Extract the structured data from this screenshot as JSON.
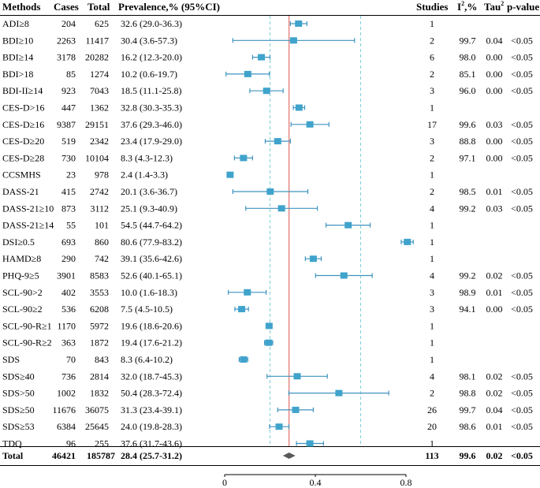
{
  "chart_data": {
    "type": "forest",
    "columns": {
      "method": "Methods",
      "cases": "Cases",
      "total": "Total",
      "prevalence": "Prevalence,% (95%CI)",
      "studies": "Studies",
      "i2": "I",
      "i2_sup": "2",
      "i2_unit": ",%",
      "tau": "Tau",
      "tau_sup": "2",
      "p": "p-value"
    },
    "x_axis": {
      "min": 0,
      "max": 0.8,
      "ticks": [
        0,
        0.4,
        0.8
      ],
      "tick_labels": [
        "0",
        "0.4",
        "0.8"
      ],
      "dashed_gridlines": [
        0.2,
        0.6
      ],
      "reference_line": 0.284
    },
    "rows": [
      {
        "method": "ADI≥8",
        "cases": "204",
        "total": "625",
        "ci_text": "32.6 (29.0-36.3)",
        "est": 0.326,
        "lo": 0.29,
        "hi": 0.363,
        "studies": "1",
        "i2": "",
        "tau2": "",
        "p": ""
      },
      {
        "method": "BDI≥10",
        "cases": "2263",
        "total": "11417",
        "ci_text": "30.4 (3.6-57.3)",
        "est": 0.304,
        "lo": 0.036,
        "hi": 0.573,
        "studies": "2",
        "i2": "99.7",
        "tau2": "0.04",
        "p": "<0.05"
      },
      {
        "method": "BDI≥14",
        "cases": "3178",
        "total": "20282",
        "ci_text": "16.2 (12.3-20.0)",
        "est": 0.162,
        "lo": 0.123,
        "hi": 0.2,
        "studies": "6",
        "i2": "98.0",
        "tau2": "0.00",
        "p": "<0.05"
      },
      {
        "method": "BDI>18",
        "cases": "85",
        "total": "1274",
        "ci_text": "10.2 (0.6-19.7)",
        "est": 0.102,
        "lo": 0.006,
        "hi": 0.197,
        "studies": "2",
        "i2": "85.1",
        "tau2": "0.00",
        "p": "<0.05"
      },
      {
        "method": "BDI-II≥14",
        "cases": "923",
        "total": "7043",
        "ci_text": "18.5 (11.1-25.8)",
        "est": 0.185,
        "lo": 0.111,
        "hi": 0.258,
        "studies": "3",
        "i2": "96.0",
        "tau2": "0.00",
        "p": "<0.05"
      },
      {
        "method": "CES-D>16",
        "cases": "447",
        "total": "1362",
        "ci_text": "32.8 (30.3-35.3)",
        "est": 0.328,
        "lo": 0.303,
        "hi": 0.353,
        "studies": "1",
        "i2": "",
        "tau2": "",
        "p": ""
      },
      {
        "method": "CES-D≥16",
        "cases": "9387",
        "total": "29151",
        "ci_text": "37.6 (29.3-46.0)",
        "est": 0.376,
        "lo": 0.293,
        "hi": 0.46,
        "studies": "17",
        "i2": "99.6",
        "tau2": "0.03",
        "p": "<0.05"
      },
      {
        "method": "CES-D≥20",
        "cases": "519",
        "total": "2342",
        "ci_text": "23.4 (17.9-29.0)",
        "est": 0.234,
        "lo": 0.179,
        "hi": 0.29,
        "studies": "3",
        "i2": "88.8",
        "tau2": "0.00",
        "p": "<0.05"
      },
      {
        "method": "CES-D≥28",
        "cases": "730",
        "total": "10104",
        "ci_text": "8.3 (4.3-12.3)",
        "est": 0.083,
        "lo": 0.043,
        "hi": 0.123,
        "studies": "2",
        "i2": "97.1",
        "tau2": "0.00",
        "p": "<0.05"
      },
      {
        "method": "CCSMHS",
        "cases": "23",
        "total": "978",
        "ci_text": "2.4 (1.4-3.3)",
        "est": 0.024,
        "lo": 0.014,
        "hi": 0.033,
        "studies": "1",
        "i2": "",
        "tau2": "",
        "p": ""
      },
      {
        "method": "DASS-21",
        "cases": "415",
        "total": "2742",
        "ci_text": "20.1 (3.6-36.7)",
        "est": 0.201,
        "lo": 0.036,
        "hi": 0.367,
        "studies": "2",
        "i2": "98.5",
        "tau2": "0.01",
        "p": "<0.05"
      },
      {
        "method": "DASS-21≥10",
        "cases": "873",
        "total": "3112",
        "ci_text": "25.1 (9.3-40.9)",
        "est": 0.251,
        "lo": 0.093,
        "hi": 0.409,
        "studies": "4",
        "i2": "99.2",
        "tau2": "0.03",
        "p": "<0.05"
      },
      {
        "method": "DASS-21≥14",
        "cases": "55",
        "total": "101",
        "ci_text": "54.5 (44.7-64.2)",
        "est": 0.545,
        "lo": 0.447,
        "hi": 0.642,
        "studies": "1",
        "i2": "",
        "tau2": "",
        "p": ""
      },
      {
        "method": "DSI≥0.5",
        "cases": "693",
        "total": "860",
        "ci_text": "80.6 (77.9-83.2)",
        "est": 0.806,
        "lo": 0.779,
        "hi": 0.832,
        "studies": "1",
        "i2": "",
        "tau2": "",
        "p": ""
      },
      {
        "method": "HAMD≥8",
        "cases": "290",
        "total": "742",
        "ci_text": "39.1 (35.6-42.6)",
        "est": 0.391,
        "lo": 0.356,
        "hi": 0.426,
        "studies": "1",
        "i2": "",
        "tau2": "",
        "p": ""
      },
      {
        "method": "PHQ-9≥5",
        "cases": "3901",
        "total": "8583",
        "ci_text": "52.6 (40.1-65.1)",
        "est": 0.526,
        "lo": 0.401,
        "hi": 0.651,
        "studies": "4",
        "i2": "99.2",
        "tau2": "0.02",
        "p": "<0.05"
      },
      {
        "method": "SCL-90>2",
        "cases": "402",
        "total": "3553",
        "ci_text": "10.0 (1.6-18.3)",
        "est": 0.1,
        "lo": 0.016,
        "hi": 0.183,
        "studies": "3",
        "i2": "98.9",
        "tau2": "0.01",
        "p": "<0.05"
      },
      {
        "method": "SCL-90≥2",
        "cases": "536",
        "total": "6208",
        "ci_text": "7.5 (4.5-10.5)",
        "est": 0.075,
        "lo": 0.045,
        "hi": 0.105,
        "studies": "3",
        "i2": "94.1",
        "tau2": "0.00",
        "p": "<0.05"
      },
      {
        "method": "SCL-90-R≥1",
        "cases": "1170",
        "total": "5972",
        "ci_text": "19.6 (18.6-20.6)",
        "est": 0.196,
        "lo": 0.186,
        "hi": 0.206,
        "studies": "1",
        "i2": "",
        "tau2": "",
        "p": ""
      },
      {
        "method": "SCL-90-R≥2",
        "cases": "363",
        "total": "1872",
        "ci_text": "19.4 (17.6-21.2)",
        "est": 0.194,
        "lo": 0.176,
        "hi": 0.212,
        "studies": "1",
        "i2": "",
        "tau2": "",
        "p": ""
      },
      {
        "method": "SDS",
        "cases": "70",
        "total": "843",
        "ci_text": "8.3 (6.4-10.2)",
        "est": 0.083,
        "lo": 0.064,
        "hi": 0.102,
        "studies": "1",
        "i2": "",
        "tau2": "",
        "p": ""
      },
      {
        "method": "SDS≥40",
        "cases": "736",
        "total": "2814",
        "ci_text": "32.0 (18.7-45.3)",
        "est": 0.32,
        "lo": 0.187,
        "hi": 0.453,
        "studies": "4",
        "i2": "98.1",
        "tau2": "0.02",
        "p": "<0.05"
      },
      {
        "method": "SDS>50",
        "cases": "1002",
        "total": "1832",
        "ci_text": "50.4 (28.3-72.4)",
        "est": 0.504,
        "lo": 0.283,
        "hi": 0.724,
        "studies": "2",
        "i2": "98.8",
        "tau2": "0.02",
        "p": "<0.05"
      },
      {
        "method": "SDS≥50",
        "cases": "11676",
        "total": "36075",
        "ci_text": "31.3 (23.4-39.1)",
        "est": 0.313,
        "lo": 0.234,
        "hi": 0.391,
        "studies": "26",
        "i2": "99.7",
        "tau2": "0.04",
        "p": "<0.05"
      },
      {
        "method": "SDS≥53",
        "cases": "6384",
        "total": "25645",
        "ci_text": "24.0 (19.8-28.3)",
        "est": 0.24,
        "lo": 0.198,
        "hi": 0.283,
        "studies": "20",
        "i2": "98.6",
        "tau2": "0.01",
        "p": "<0.05"
      },
      {
        "method": "TDQ",
        "cases": "96",
        "total": "255",
        "ci_text": "37.6 (31.7-43.6)",
        "est": 0.376,
        "lo": 0.317,
        "hi": 0.436,
        "studies": "1",
        "i2": "",
        "tau2": "",
        "p": ""
      }
    ],
    "total": {
      "method": "Total",
      "cases": "46421",
      "total": "185787",
      "ci_text": "28.4 (25.7-31.2)",
      "est": 0.284,
      "lo": 0.257,
      "hi": 0.312,
      "studies": "113",
      "i2": "99.6",
      "tau2": "0.02",
      "p": "<0.05"
    },
    "colors": {
      "marker": "#3fa3cc",
      "ci_line": "#3f93c0",
      "grid": "#7fd0d8",
      "reference": "#e0706a",
      "diamond": "#595959"
    }
  }
}
